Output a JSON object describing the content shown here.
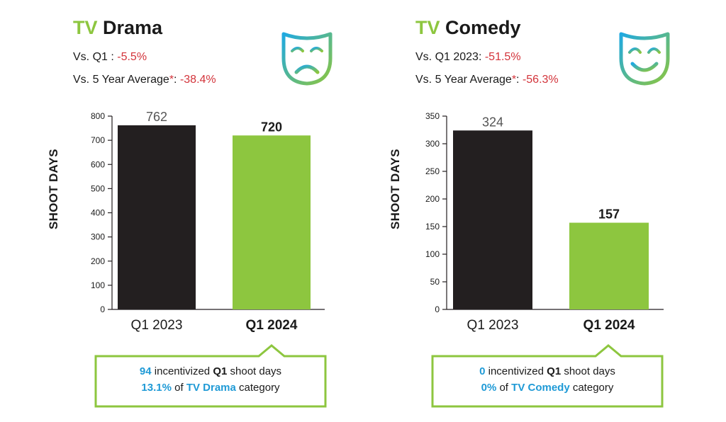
{
  "colors": {
    "accent_green": "#8dc63f",
    "bar_dark": "#231f20",
    "negative_red": "#d3333a",
    "highlight_blue": "#1f9ad6"
  },
  "panels": [
    {
      "title_accent": "TV",
      "title_rest": "Drama",
      "stat1_label": "Vs. Q1  : ",
      "stat1_value": "-5.5%",
      "stat2_label": "Vs. 5 Year Average",
      "stat2_star": "*",
      "stat2_sep": ": ",
      "stat2_value": "-38.4%",
      "icon": "sad-drama-mask-icon",
      "ylabel": "SHOOT DAYS",
      "callout": {
        "l1_num": "94",
        "l1_mid": " incentivized ",
        "l1_bold": "Q1",
        "l1_end": " shoot days",
        "l2_pct": "13.1%",
        "l2_mid": " of ",
        "l2_cat": "TV Drama",
        "l2_end": " category"
      }
    },
    {
      "title_accent": "TV",
      "title_rest": "Comedy",
      "stat1_label": "Vs. Q1 2023: ",
      "stat1_value": "-51.5%",
      "stat2_label": "Vs. 5 Year Average",
      "stat2_star": "*",
      "stat2_sep": ": ",
      "stat2_value": "-56.3%",
      "icon": "happy-comedy-mask-icon",
      "ylabel": "SHOOT DAYS",
      "callout": {
        "l1_num": "0",
        "l1_mid": " incentivized ",
        "l1_bold": "Q1",
        "l1_end": " shoot days",
        "l2_pct": "0%",
        "l2_mid": " of ",
        "l2_cat": "TV Comedy",
        "l2_end": " category"
      }
    }
  ],
  "chart_data": [
    {
      "type": "bar",
      "title": "TV Drama",
      "ylabel": "SHOOT DAYS",
      "categories": [
        "Q1 2023",
        "Q1 2024"
      ],
      "values": [
        762,
        720
      ],
      "data_labels": [
        "762",
        "720"
      ],
      "ylim": [
        0,
        800
      ],
      "yticks": [
        0,
        100,
        200,
        300,
        400,
        500,
        600,
        700,
        800
      ],
      "grid": false
    },
    {
      "type": "bar",
      "title": "TV Comedy",
      "ylabel": "SHOOT DAYS",
      "categories": [
        "Q1 2023",
        "Q1 2024"
      ],
      "values": [
        324,
        157
      ],
      "data_labels": [
        "324",
        "157"
      ],
      "ylim": [
        0,
        350
      ],
      "yticks": [
        0,
        50,
        100,
        150,
        200,
        250,
        300,
        350
      ],
      "grid": false
    }
  ]
}
